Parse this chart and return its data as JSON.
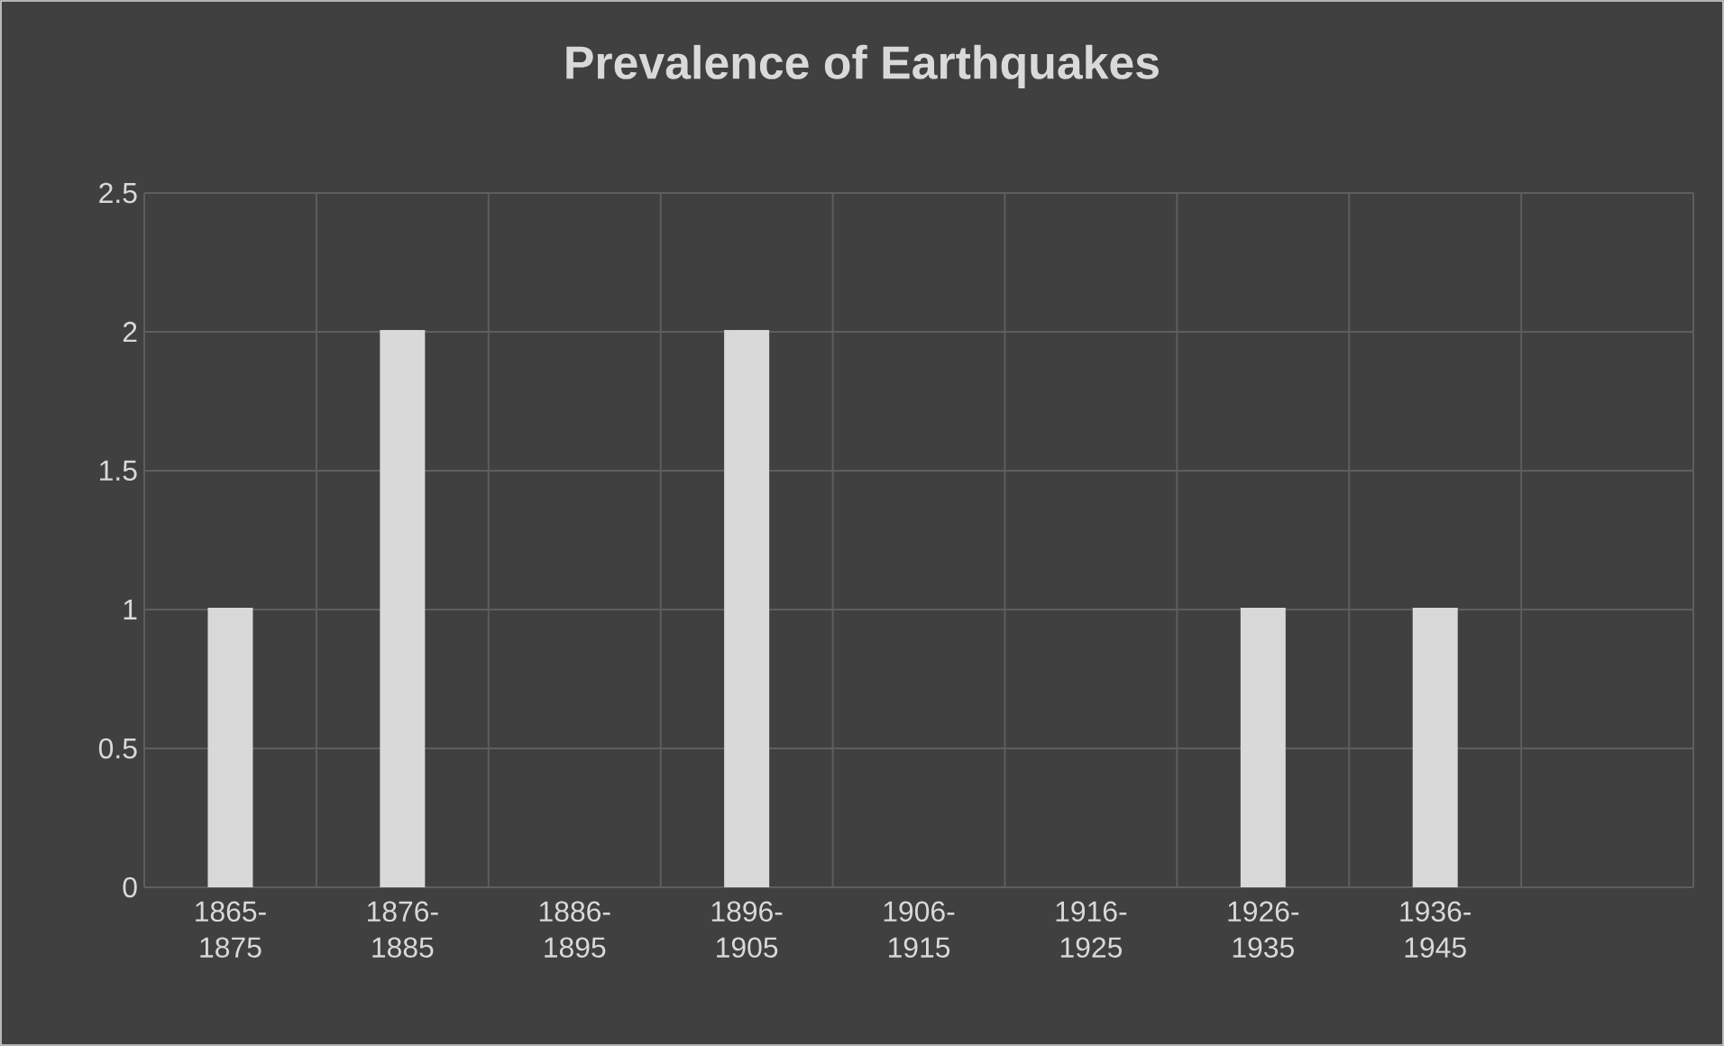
{
  "chart_data": {
    "type": "bar",
    "title": "Prevalence of Earthquakes",
    "categories": [
      "1865-1875",
      "1876-1885",
      "1886-1895",
      "1896-1905",
      "1906-1915",
      "1916-1925",
      "1926-1935",
      "1936-1945",
      null
    ],
    "values": [
      1,
      2,
      null,
      2,
      null,
      null,
      1,
      1,
      null
    ],
    "color": "#d9d9d9",
    "ylim": [
      0,
      2.5
    ],
    "yticks": [
      0,
      0.5,
      1,
      1.5,
      2,
      2.5
    ],
    "grid": true
  }
}
